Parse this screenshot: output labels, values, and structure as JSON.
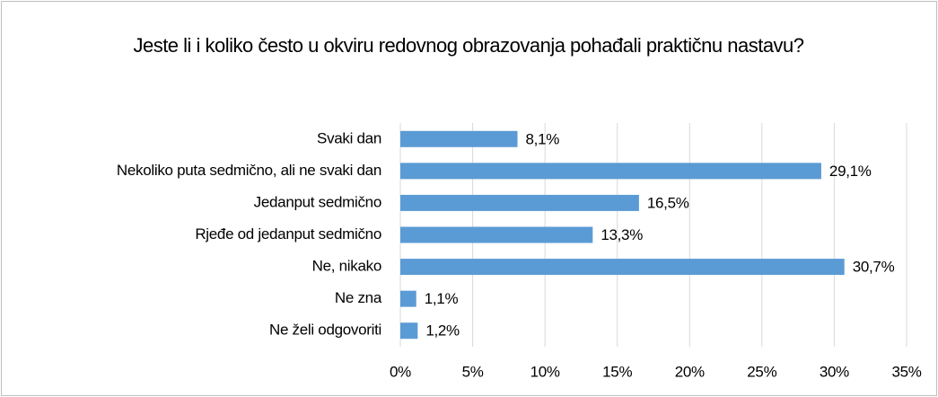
{
  "chart_data": {
    "type": "bar",
    "orientation": "horizontal",
    "title": "Jeste li i koliko često u okviru redovnog obrazovanja pohađali praktičnu nastavu?",
    "categories": [
      "Svaki dan",
      "Nekoliko puta sedmično, ali ne svaki dan",
      "Jedanput sedmično",
      "Rjeđe od jedanput sedmično",
      "Ne, nikako",
      "Ne zna",
      "Ne želi odgovoriti"
    ],
    "values": [
      8.1,
      29.1,
      16.5,
      13.3,
      30.7,
      1.1,
      1.2
    ],
    "value_labels": [
      "8,1%",
      "29,1%",
      "16,5%",
      "13,3%",
      "30,7%",
      "1,1%",
      "1,2%"
    ],
    "color": "#5b9bd5",
    "xlim": [
      0,
      35
    ],
    "xticks": [
      {
        "value": 0,
        "label": "0%"
      },
      {
        "value": 5,
        "label": "5%"
      },
      {
        "value": 10,
        "label": "10%"
      },
      {
        "value": 15,
        "label": "15%"
      },
      {
        "value": 20,
        "label": "20%"
      },
      {
        "value": 25,
        "label": "25%"
      },
      {
        "value": 30,
        "label": "30%"
      },
      {
        "value": 35,
        "label": "35%"
      }
    ],
    "grid": true
  }
}
